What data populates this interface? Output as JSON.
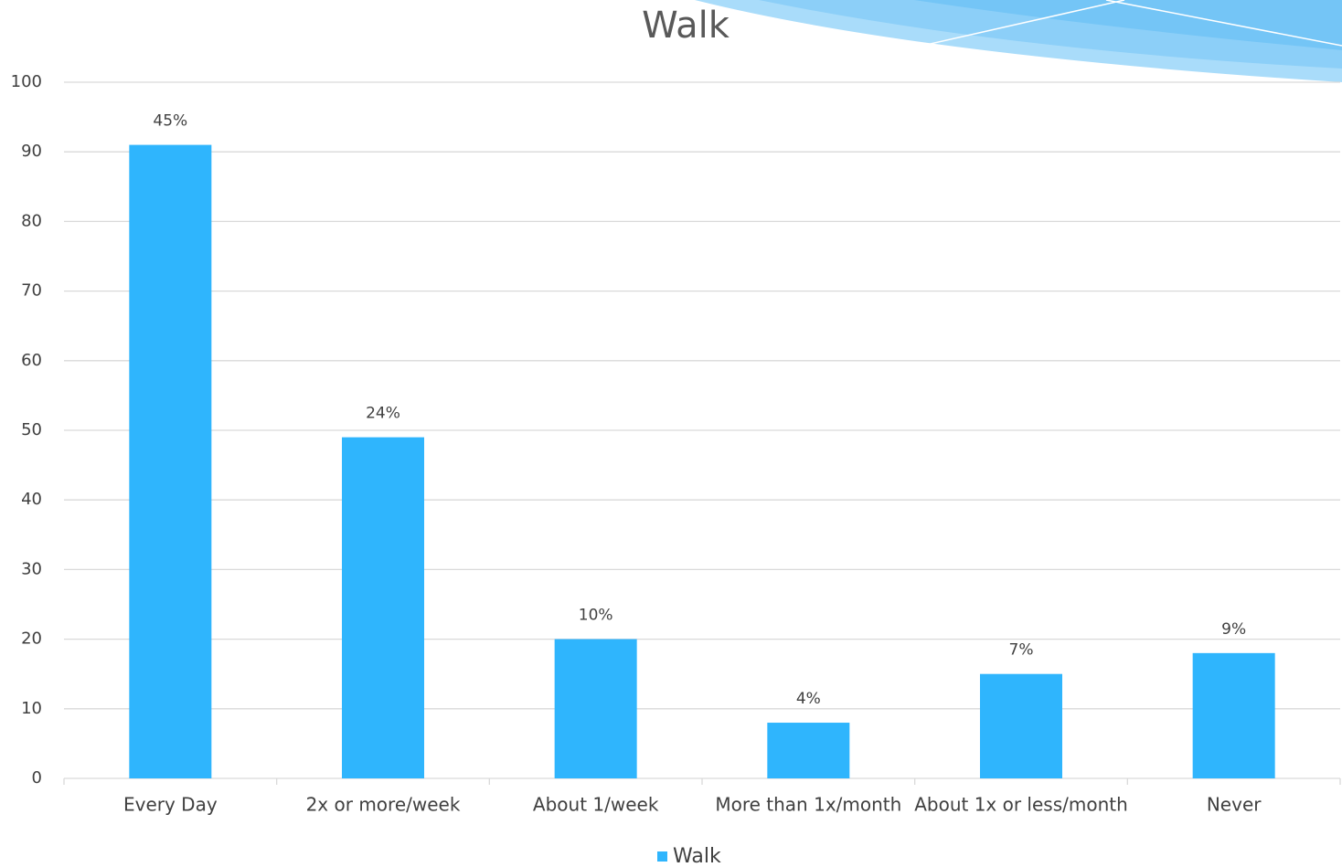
{
  "chart_data": {
    "type": "bar",
    "title": "Walk",
    "categories": [
      "Every Day",
      "2x or more/week",
      "About 1/week",
      "More than 1x/month",
      "About 1x or less/month",
      "Never"
    ],
    "series": [
      {
        "name": "Walk",
        "color": "#2fb5fd",
        "values": [
          91,
          49,
          20,
          8,
          15,
          18
        ],
        "value_labels": [
          "45%",
          "24%",
          "10%",
          "4%",
          "7%",
          "9%"
        ]
      }
    ],
    "ylim": [
      0,
      100
    ],
    "yticks": [
      0,
      10,
      20,
      30,
      40,
      50,
      60,
      70,
      80,
      90,
      100
    ],
    "grid": true,
    "legend": "bottom"
  }
}
